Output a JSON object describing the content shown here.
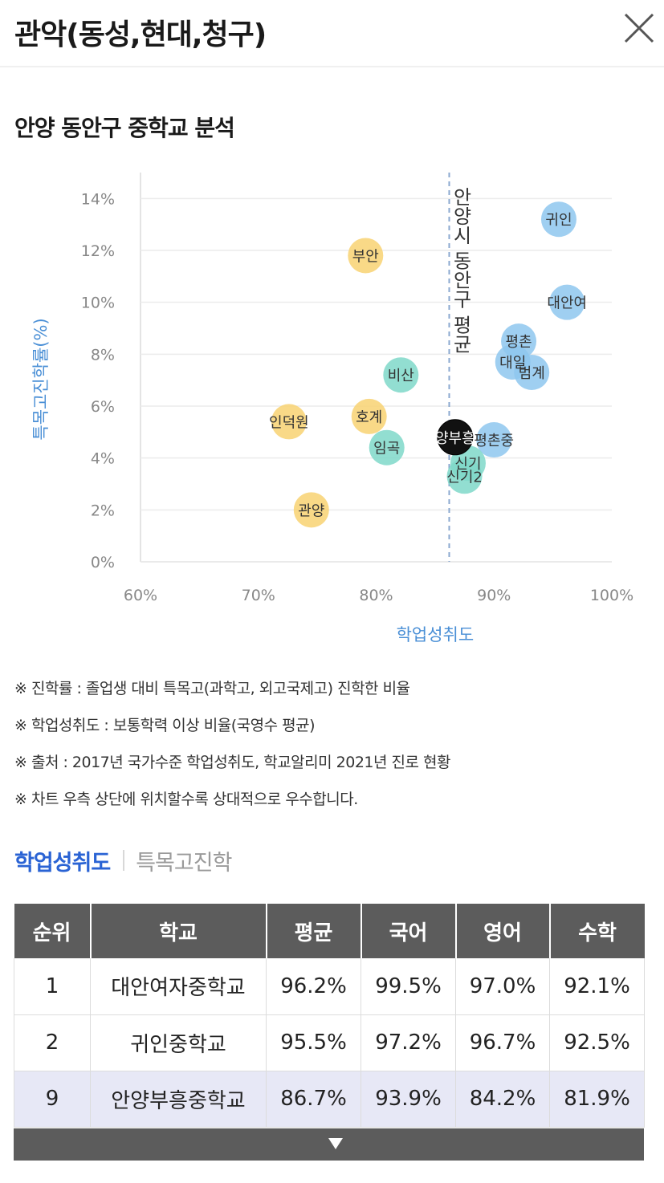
{
  "header": {
    "title": "관악(동성,현대,청구)"
  },
  "section": {
    "title": "안양 동안구 중학교 분석"
  },
  "chart_data": {
    "type": "scatter",
    "xlabel": "학업성취도",
    "ylabel": "특목고진학률(%)",
    "xlim": [
      60,
      100
    ],
    "ylim": [
      0,
      15
    ],
    "x_ticks": [
      "60%",
      "70%",
      "80%",
      "90%",
      "100%"
    ],
    "y_ticks": [
      "0%",
      "2%",
      "4%",
      "6%",
      "8%",
      "10%",
      "12%",
      "14%"
    ],
    "grid": true,
    "reference_line": {
      "x": 86.2,
      "label": "안양시 동안구 평균"
    },
    "colors": {
      "blue": "#8ec7ee",
      "teal": "#7fd8c9",
      "yellow": "#f8d272",
      "highlight": "#111111",
      "ref": "#8aa8cf"
    },
    "points": [
      {
        "label": "귀인",
        "x": 95.5,
        "y": 13.2,
        "color": "blue"
      },
      {
        "label": "대안여",
        "x": 96.2,
        "y": 10.0,
        "color": "blue"
      },
      {
        "label": "평촌",
        "x": 92.1,
        "y": 8.5,
        "color": "blue"
      },
      {
        "label": "대일",
        "x": 91.6,
        "y": 7.7,
        "color": "blue"
      },
      {
        "label": "범계",
        "x": 93.2,
        "y": 7.3,
        "color": "blue"
      },
      {
        "label": "부안",
        "x": 79.1,
        "y": 11.8,
        "color": "yellow"
      },
      {
        "label": "비산",
        "x": 82.1,
        "y": 7.2,
        "color": "teal"
      },
      {
        "label": "인덕원",
        "x": 72.6,
        "y": 5.4,
        "color": "yellow"
      },
      {
        "label": "호계",
        "x": 79.4,
        "y": 5.6,
        "color": "yellow"
      },
      {
        "label": "임곡",
        "x": 80.9,
        "y": 4.4,
        "color": "teal"
      },
      {
        "label": "관양",
        "x": 74.5,
        "y": 2.0,
        "color": "yellow"
      },
      {
        "label": "평촌중",
        "x": 90.0,
        "y": 4.7,
        "color": "blue"
      },
      {
        "label": "신기",
        "x": 87.8,
        "y": 3.8,
        "color": "teal"
      },
      {
        "label": "신기2",
        "x": 87.5,
        "y": 3.3,
        "color": "teal"
      },
      {
        "label": "양부흥",
        "x": 86.7,
        "y": 4.8,
        "color": "highlight"
      }
    ]
  },
  "notes": [
    "※ 진학률 : 졸업생 대비 특목고(과학고, 외고국제고) 진학한 비율",
    "※ 학업성취도 : 보통학력 이상 비율(국영수 평균)",
    "※ 출처 : 2017년 국가수준 학업성취도, 학교알리미 2021년 진로 현황",
    "※ 차트 우측 상단에 위치할수록 상대적으로 우수합니다."
  ],
  "tabs": {
    "active": "학업성취도",
    "inactive": "특목고진학"
  },
  "table": {
    "headers": [
      "순위",
      "학교",
      "평균",
      "국어",
      "영어",
      "수학"
    ],
    "rows": [
      [
        "1",
        "대안여자중학교",
        "96.2%",
        "99.5%",
        "97.0%",
        "92.1%"
      ],
      [
        "2",
        "귀인중학교",
        "95.5%",
        "97.2%",
        "96.7%",
        "92.5%"
      ],
      [
        "9",
        "안양부흥중학교",
        "86.7%",
        "93.9%",
        "84.2%",
        "81.9%"
      ]
    ]
  }
}
